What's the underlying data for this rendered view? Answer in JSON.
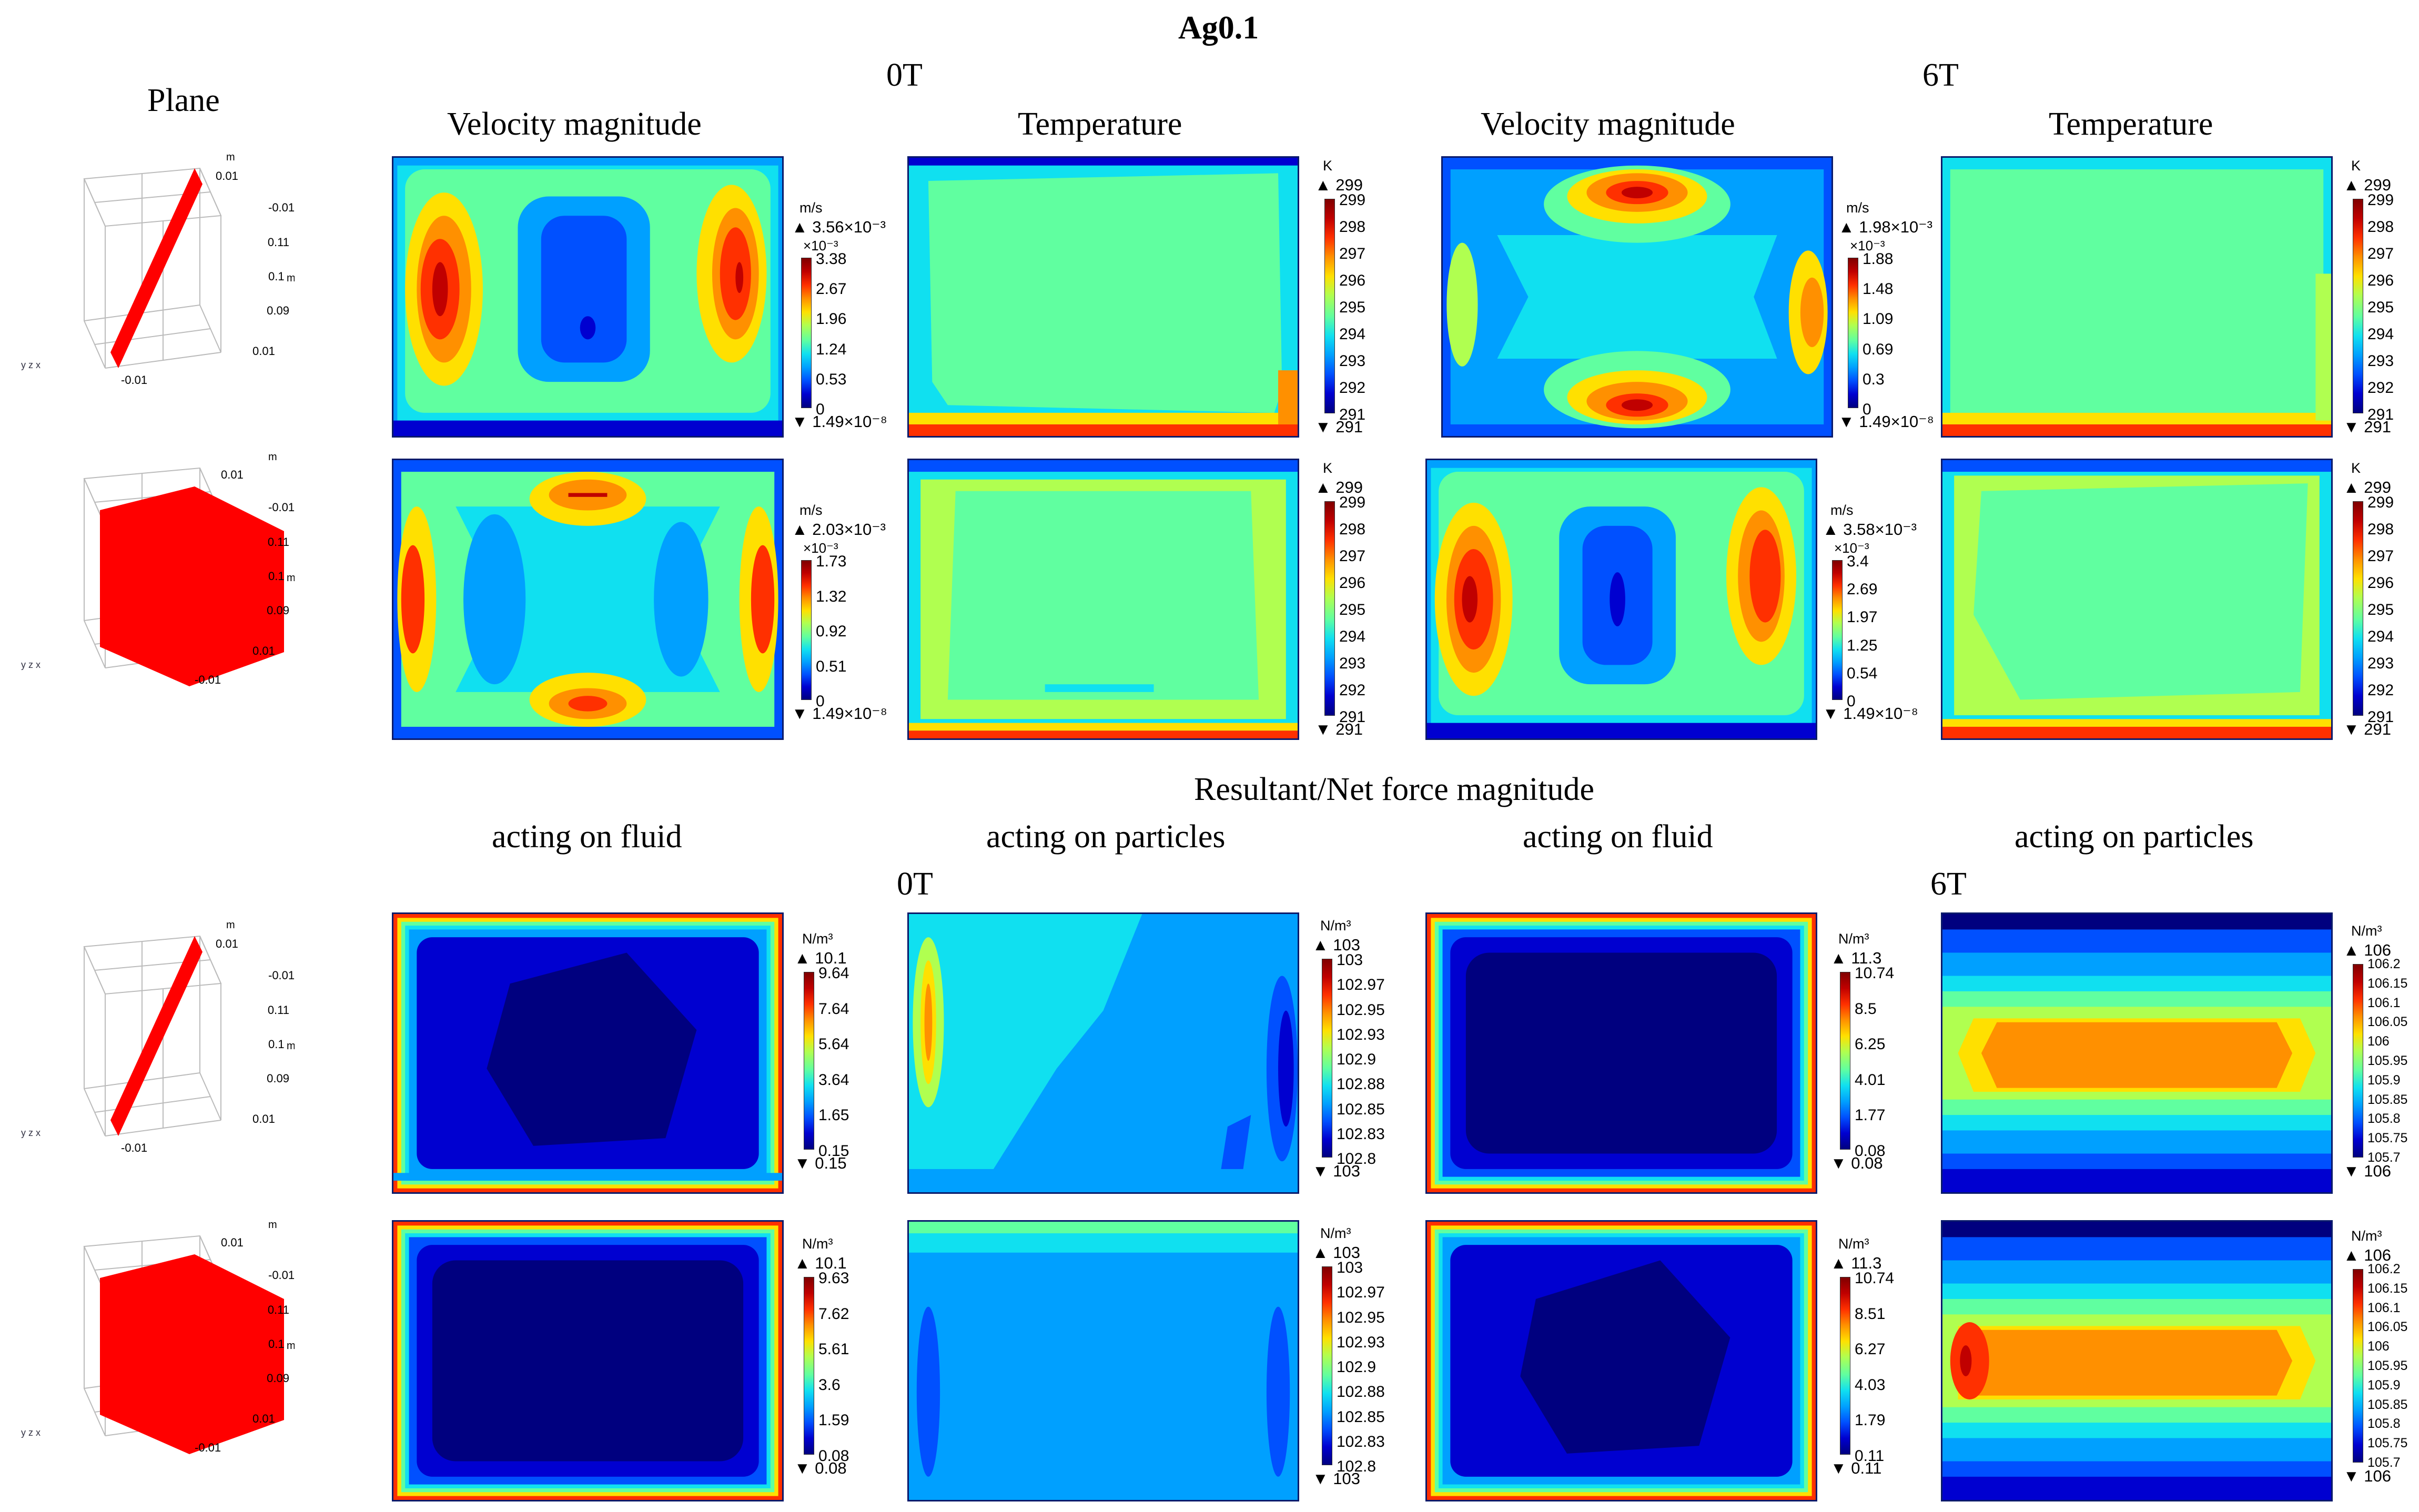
{
  "figure": {
    "title": "Ag0.1",
    "plane_header": "Plane",
    "top_field_0": "0T",
    "top_field_6": "6T",
    "velocity_header": "Velocity magnitude",
    "temperature_header": "Temperature",
    "force_header": "Resultant/Net force magnitude",
    "fluid_header": "acting on fluid",
    "particles_header": "acting on particles",
    "bottom_field_0": "0T",
    "bottom_field_6": "6T"
  },
  "plane_axes": {
    "top_m": "m",
    "y_neg": "-0.01",
    "y_pos": "0.01",
    "z_high": "0.11",
    "z_mid": "0.1",
    "z_unit": "m",
    "z_low": "0.09",
    "x_pos": "0.01",
    "x_neg": "-0.01",
    "triad": "y z x"
  },
  "legends": {
    "vel_r1_0T": {
      "unit": "m/s",
      "max": "3.56×10⁻³",
      "mult": "×10⁻³",
      "ticks": [
        "3.38",
        "2.67",
        "1.96",
        "1.24",
        "0.53",
        "0"
      ],
      "min": "1.49×10⁻⁸"
    },
    "temp_r1_0T": {
      "unit": "K",
      "max": "299",
      "ticks": [
        "299",
        "298",
        "297",
        "296",
        "295",
        "294",
        "293",
        "292",
        "291"
      ],
      "min": "291"
    },
    "vel_r1_6T": {
      "unit": "m/s",
      "max": "1.98×10⁻³",
      "mult": "×10⁻³",
      "ticks": [
        "1.88",
        "1.48",
        "1.09",
        "0.69",
        "0.3",
        "0"
      ],
      "min": "1.49×10⁻⁸"
    },
    "temp_r1_6T": {
      "unit": "K",
      "max": "299",
      "ticks": [
        "299",
        "298",
        "297",
        "296",
        "295",
        "294",
        "293",
        "292",
        "291"
      ],
      "min": "291"
    },
    "vel_r2_0T": {
      "unit": "m/s",
      "max": "2.03×10⁻³",
      "mult": "×10⁻³",
      "ticks": [
        "1.73",
        "1.32",
        "0.92",
        "0.51",
        "0"
      ],
      "min": "1.49×10⁻⁸"
    },
    "temp_r2_0T": {
      "unit": "K",
      "max": "299",
      "ticks": [
        "299",
        "298",
        "297",
        "296",
        "295",
        "294",
        "293",
        "292",
        "291"
      ],
      "min": "291"
    },
    "vel_r2_6T": {
      "unit": "m/s",
      "max": "3.58×10⁻³",
      "mult": "×10⁻³",
      "ticks": [
        "3.4",
        "2.69",
        "1.97",
        "1.25",
        "0.54",
        "0"
      ],
      "min": "1.49×10⁻⁸"
    },
    "temp_r2_6T": {
      "unit": "K",
      "max": "299",
      "ticks": [
        "299",
        "298",
        "297",
        "296",
        "295",
        "294",
        "293",
        "292",
        "291"
      ],
      "min": "291"
    },
    "ff_r3_0T": {
      "unit": "N/m³",
      "max": "10.1",
      "ticks": [
        "9.64",
        "7.64",
        "5.64",
        "3.64",
        "1.65",
        "0.15"
      ],
      "min": "0.15"
    },
    "fp_r3_0T": {
      "unit": "N/m³",
      "max": "103",
      "ticks": [
        "103",
        "102.97",
        "102.95",
        "102.93",
        "102.9",
        "102.88",
        "102.85",
        "102.83",
        "102.8"
      ],
      "min": "103"
    },
    "ff_r3_6T": {
      "unit": "N/m³",
      "max": "11.3",
      "ticks": [
        "10.74",
        "8.5",
        "6.25",
        "4.01",
        "1.77",
        "0.08"
      ],
      "min": "0.08"
    },
    "fp_r3_6T": {
      "unit": "N/m³",
      "max": "106",
      "ticks": [
        "106.2",
        "106.15",
        "106.1",
        "106.05",
        "106",
        "105.95",
        "105.9",
        "105.85",
        "105.8",
        "105.75",
        "105.7"
      ],
      "min": "106"
    },
    "ff_r4_0T": {
      "unit": "N/m³",
      "max": "10.1",
      "ticks": [
        "9.63",
        "7.62",
        "5.61",
        "3.6",
        "1.59",
        "0.08"
      ],
      "min": "0.08"
    },
    "fp_r4_0T": {
      "unit": "N/m³",
      "max": "103",
      "ticks": [
        "103",
        "102.97",
        "102.95",
        "102.93",
        "102.9",
        "102.88",
        "102.85",
        "102.83",
        "102.8"
      ],
      "min": "103"
    },
    "ff_r4_6T": {
      "unit": "N/m³",
      "max": "11.3",
      "ticks": [
        "10.74",
        "8.51",
        "6.27",
        "4.03",
        "1.79",
        "0.11"
      ],
      "min": "0.11"
    },
    "fp_r4_6T": {
      "unit": "N/m³",
      "max": "106",
      "ticks": [
        "106.2",
        "106.15",
        "106.1",
        "106.05",
        "106",
        "105.95",
        "105.9",
        "105.85",
        "105.8",
        "105.75",
        "105.7"
      ],
      "min": "106"
    }
  },
  "colors": {
    "plane_red": "#ff0000",
    "jet": [
      "#00007f",
      "#0000d0",
      "#0050ff",
      "#00a0ff",
      "#10e0f0",
      "#60ffa0",
      "#b0ff50",
      "#ffe000",
      "#ff9000",
      "#ff3000",
      "#c00000",
      "#7f0000"
    ]
  }
}
